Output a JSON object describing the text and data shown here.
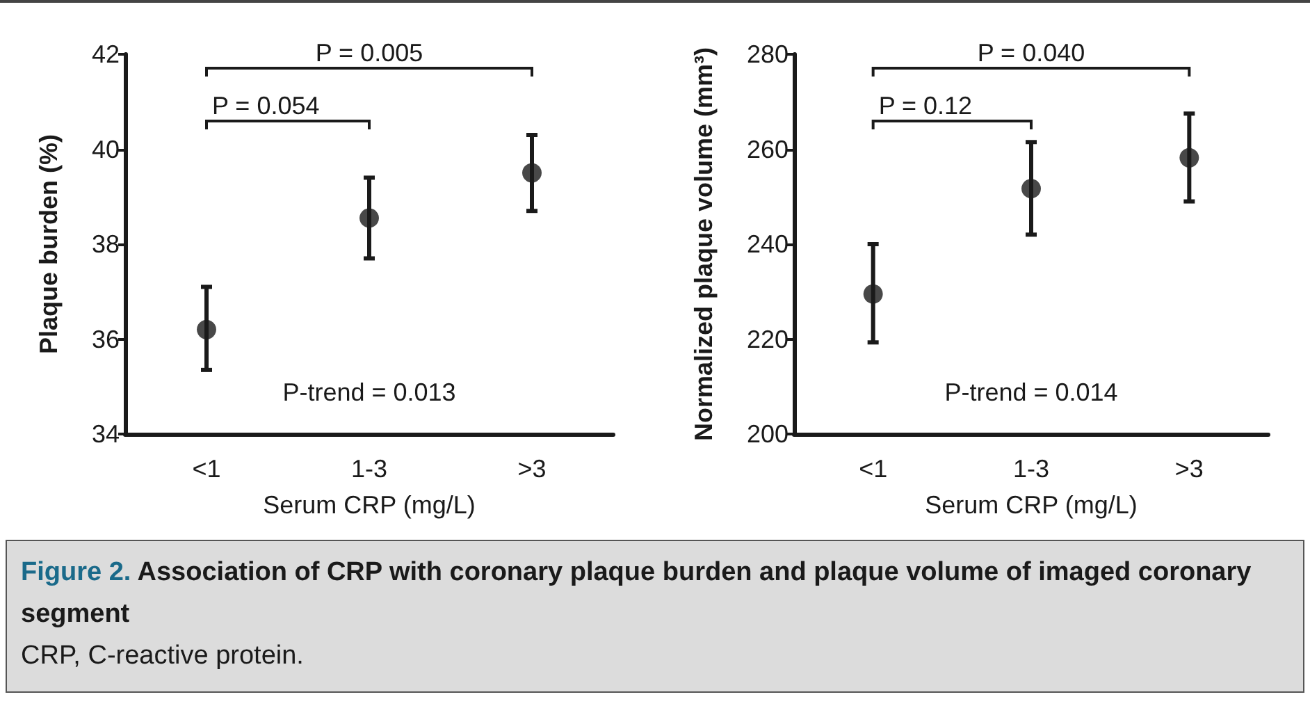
{
  "chart_data": [
    {
      "type": "scatter",
      "categories": [
        "<1",
        "1-3",
        ">3"
      ],
      "xlabel": "Serum CRP (mg/L)",
      "ylabel": "Plaque burden (%)",
      "ylim": [
        34,
        42
      ],
      "yticks": [
        34,
        36,
        38,
        40,
        42
      ],
      "grid": false,
      "marker": "circle",
      "series": [
        {
          "color": "#1a1a1a",
          "values": [
            36.2,
            38.55,
            39.5
          ],
          "errors": [
            [
              35.35,
              37.1
            ],
            [
              37.7,
              39.4
            ],
            [
              38.7,
              40.3
            ]
          ]
        }
      ],
      "annotations": [
        "P = 0.005",
        "P = 0.054",
        "P-trend = 0.013"
      ]
    },
    {
      "type": "scatter",
      "categories": [
        "<1",
        "1-3",
        ">3"
      ],
      "xlabel": "Serum CRP (mg/L)",
      "ylabel": "Normalized plaque volume (mm³)",
      "ylim": [
        200,
        280
      ],
      "yticks": [
        200,
        220,
        240,
        260,
        280
      ],
      "grid": false,
      "marker": "circle",
      "series": [
        {
          "color": "#1a1a1a",
          "values": [
            229.5,
            251.7,
            258.2
          ],
          "errors": [
            [
              219.3,
              240
            ],
            [
              242,
              261.5
            ],
            [
              249,
              267.5
            ]
          ]
        }
      ],
      "annotations": [
        "P = 0.040",
        "P = 0.12",
        "P-trend = 0.014"
      ]
    },
    {
      "type": "other",
      "title": "Figure 2. Association of CRP with coronary plaque burden and plaque volume of imaged coronary segment",
      "annotations": [
        "CRP, C-reactive protein."
      ]
    }
  ]
}
